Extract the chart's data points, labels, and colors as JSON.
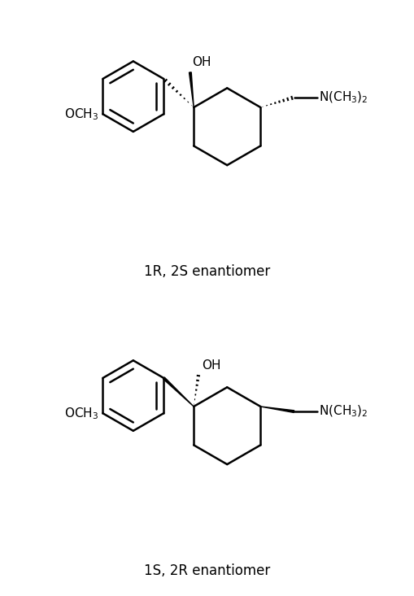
{
  "background_color": "#ffffff",
  "line_color": "#000000",
  "line_width": 1.8,
  "text_color": "#000000",
  "fig_width": 5.09,
  "fig_height": 7.33,
  "label1": "1R, 2S enantiomer",
  "label2": "1S, 2R enantiomer",
  "label_fontsize": 12,
  "chem_fontsize": 11
}
